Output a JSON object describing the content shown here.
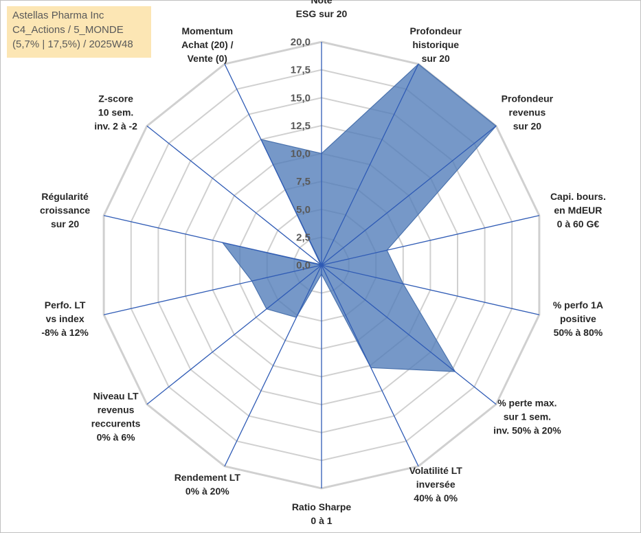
{
  "info": {
    "company": "Astellas Pharma Inc",
    "category": "C4_Actions / 5_MONDE",
    "details": "(5,7% | 17,5%) / 2025W48"
  },
  "chart_data": {
    "type": "radar",
    "title": "",
    "rmin": 0,
    "rmax": 20,
    "rticks": [
      "0,0",
      "2,5",
      "5,0",
      "7,5",
      "10,0",
      "12,5",
      "15,0",
      "17,5",
      "20,0"
    ],
    "axes": [
      [
        "Note",
        "ESG sur 20"
      ],
      [
        "Profondeur",
        "historique",
        "sur 20"
      ],
      [
        "Profondeur",
        "revenus",
        "sur 20"
      ],
      [
        "Capi. bours.",
        "en MdEUR",
        "0 à 60 G€"
      ],
      [
        "% perfo 1A",
        "positive",
        "50% à 80%"
      ],
      [
        "% perte max.",
        "sur 1 sem.",
        "inv. 50% à 20%"
      ],
      [
        "Volatilité LT",
        "inversée",
        "40% à 0%"
      ],
      [
        "Ratio Sharpe",
        "0 à 1"
      ],
      [
        "Rendement LT",
        "0% à 20%"
      ],
      [
        "Niveau LT",
        "revenus",
        "reccurents",
        "0% à 6%"
      ],
      [
        "Perfo. LT",
        "vs index",
        "-8% à 12%"
      ],
      [
        "Régularité",
        "croissance",
        "sur 20"
      ],
      [
        "Z-score",
        "10 sem.",
        "inv. 2 à -2"
      ],
      [
        "Momentum",
        "Achat (20) /",
        "Vente (0)"
      ]
    ],
    "series": [
      {
        "name": "Astellas Pharma Inc",
        "color": "#4f7bb8",
        "values": [
          10.0,
          20.0,
          20.0,
          6.0,
          7.5,
          15.3,
          10.2,
          0.8,
          5.2,
          6.3,
          6.4,
          9.1,
          0.1,
          12.5
        ]
      }
    ],
    "grid": true
  }
}
